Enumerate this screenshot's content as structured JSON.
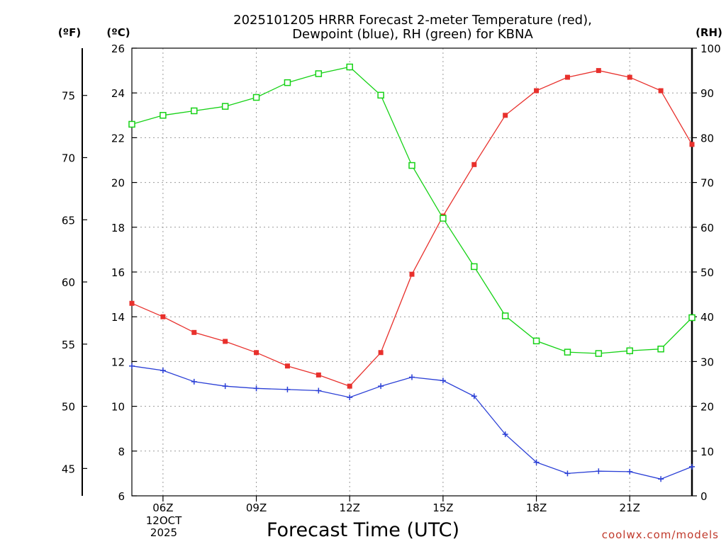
{
  "chart_data": {
    "type": "line",
    "title_line1": "2025101205 HRRR Forecast 2-meter Temperature (red),",
    "title_line2": "Dewpoint (blue), RH (green) for KBNA",
    "xlabel": "Forecast Time (UTC)",
    "credit": "coolwx.com/models",
    "date_line1": "12OCT",
    "date_line2": "2025",
    "units": {
      "fahrenheit": "(ºF)",
      "celsius": "(ºC)",
      "rh": "(RH)"
    },
    "x_hours": [
      5,
      6,
      7,
      8,
      9,
      10,
      11,
      12,
      13,
      14,
      15,
      16,
      17,
      18,
      19,
      20,
      21,
      22,
      23
    ],
    "xlim": [
      5,
      23
    ],
    "x_ticks": [
      {
        "hour": 6,
        "label": "06Z"
      },
      {
        "hour": 9,
        "label": "09Z"
      },
      {
        "hour": 12,
        "label": "12Z"
      },
      {
        "hour": 15,
        "label": "15Z"
      },
      {
        "hour": 18,
        "label": "18Z"
      },
      {
        "hour": 21,
        "label": "21Z"
      }
    ],
    "celsius_axis": {
      "ylim": [
        6,
        26
      ],
      "ticks": [
        "6",
        "8",
        "10",
        "12",
        "14",
        "16",
        "18",
        "20",
        "22",
        "24",
        "26"
      ]
    },
    "fahrenheit_axis": {
      "ticks": [
        "45",
        "50",
        "55",
        "60",
        "65",
        "70",
        "75"
      ]
    },
    "rh_axis": {
      "ylim": [
        0,
        100
      ],
      "ticks": [
        "0",
        "10",
        "20",
        "30",
        "40",
        "50",
        "60",
        "70",
        "80",
        "90",
        "100"
      ]
    },
    "series": [
      {
        "name": "Temperature",
        "axis": "celsius",
        "color": "#e8302c",
        "marker": "filled-square",
        "values": [
          14.6,
          14.0,
          13.3,
          12.9,
          12.4,
          11.8,
          11.4,
          10.9,
          12.4,
          15.9,
          18.5,
          20.8,
          23.0,
          24.1,
          24.7,
          25.0,
          24.7,
          24.1,
          21.7
        ]
      },
      {
        "name": "Dewpoint",
        "axis": "celsius",
        "color": "#2a3fd6",
        "marker": "plus",
        "values": [
          11.8,
          11.6,
          11.1,
          10.9,
          10.8,
          10.75,
          10.7,
          10.4,
          10.9,
          11.3,
          11.15,
          10.45,
          8.75,
          7.5,
          7.0,
          7.1,
          7.08,
          6.75,
          7.3
        ]
      },
      {
        "name": "RH",
        "axis": "rh",
        "color": "#16d216",
        "marker": "open-square",
        "values": [
          83,
          85,
          86,
          87,
          89,
          92.3,
          94.3,
          95.8,
          89.5,
          73.8,
          62,
          51.2,
          40.2,
          34.6,
          32.1,
          31.8,
          32.4,
          32.8,
          39.8
        ]
      }
    ]
  }
}
